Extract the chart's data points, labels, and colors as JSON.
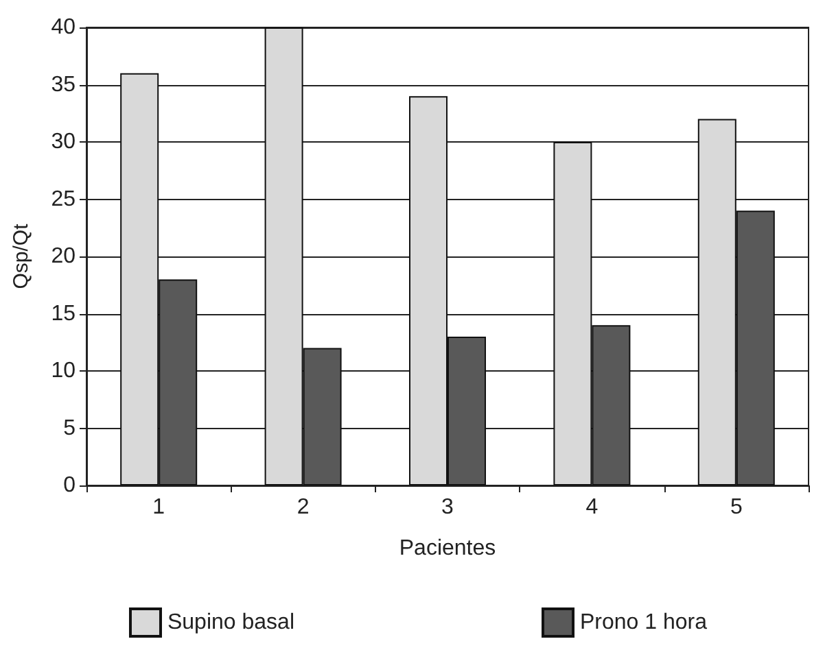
{
  "chart_data": {
    "type": "bar",
    "xlabel": "Pacientes",
    "ylabel": "Qsp/Qt",
    "categories": [
      "1",
      "2",
      "3",
      "4",
      "5"
    ],
    "series": [
      {
        "name": "Supino basal",
        "color": "#d9d9d9",
        "values": [
          36,
          40,
          34,
          30,
          32
        ]
      },
      {
        "name": "Prono 1 hora",
        "color": "#595959",
        "values": [
          18,
          12,
          13,
          14,
          24
        ]
      }
    ],
    "ylim": [
      0,
      40
    ],
    "yticks": [
      0,
      5,
      10,
      15,
      20,
      25,
      30,
      35,
      40
    ],
    "grid": "y",
    "legend": "bottom"
  }
}
